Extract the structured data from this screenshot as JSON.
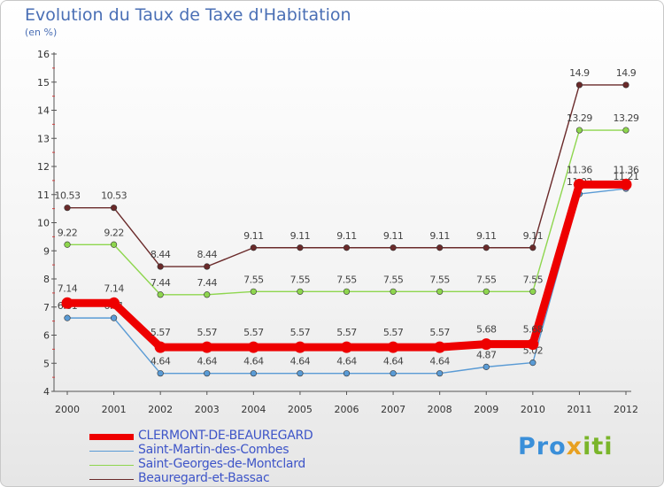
{
  "chart_data": {
    "type": "line",
    "title": "Evolution du Taux de Taxe d'Habitation",
    "unit_label": "(en %)",
    "x": [
      "2000",
      "2001",
      "2002",
      "2003",
      "2004",
      "2005",
      "2006",
      "2007",
      "2008",
      "2009",
      "2010",
      "2011",
      "2012"
    ],
    "ylim": [
      4,
      16
    ],
    "yticks": [
      "4",
      "5",
      "6",
      "7",
      "8",
      "9",
      "10",
      "11",
      "12",
      "13",
      "14",
      "15",
      "16"
    ],
    "series": [
      {
        "name": "Beauregard-et-Bassac",
        "color": "#6a2a2a",
        "values": [
          10.53,
          10.53,
          8.44,
          8.44,
          9.11,
          9.11,
          9.11,
          9.11,
          9.11,
          9.11,
          9.11,
          14.9,
          14.9
        ],
        "labels": [
          "10.53",
          "10.53",
          "8.44",
          "8.44",
          "9.11",
          "9.11",
          "9.11",
          "9.11",
          "9.11",
          "9.11",
          "9.11",
          "14.9",
          "14.9"
        ]
      },
      {
        "name": "Saint-Georges-de-Montclard",
        "color": "#8ed64e",
        "values": [
          9.22,
          9.22,
          7.44,
          7.44,
          7.55,
          7.55,
          7.55,
          7.55,
          7.55,
          7.55,
          7.55,
          13.29,
          13.29
        ],
        "labels": [
          "9.22",
          "9.22",
          "7.44",
          "7.44",
          "7.55",
          "7.55",
          "7.55",
          "7.55",
          "7.55",
          "7.55",
          "7.55",
          "13.29",
          "13.29"
        ]
      },
      {
        "name": "Saint-Martin-des-Combes",
        "color": "#5a9bd5",
        "values": [
          6.61,
          6.61,
          4.64,
          4.64,
          4.64,
          4.64,
          4.64,
          4.64,
          4.64,
          4.87,
          5.02,
          11.02,
          11.21
        ],
        "labels": [
          "6.61",
          "6.61",
          "4.64",
          "4.64",
          "4.64",
          "4.64",
          "4.64",
          "4.64",
          "4.64",
          "4.87",
          "5.02",
          "11.02",
          "11.21"
        ]
      },
      {
        "name": "CLERMONT-DE-BEAUREGARD",
        "color": "#ee0000",
        "values": [
          7.14,
          7.14,
          5.57,
          5.57,
          5.57,
          5.57,
          5.57,
          5.57,
          5.57,
          5.68,
          5.68,
          11.36,
          11.36
        ],
        "labels": [
          "7.14",
          "7.14",
          "5.57",
          "5.57",
          "5.57",
          "5.57",
          "5.57",
          "5.57",
          "5.57",
          "5.68",
          "5.68",
          "11.36",
          "11.36"
        ],
        "emphasis": true
      }
    ]
  },
  "legend": {
    "entries": [
      {
        "label": "CLERMONT-DE-BEAUREGARD",
        "color": "#ee0000",
        "thick": true
      },
      {
        "label": "Saint-Martin-des-Combes",
        "color": "#5a9bd5",
        "thick": false
      },
      {
        "label": "Saint-Georges-de-Montclard",
        "color": "#8ed64e",
        "thick": false
      },
      {
        "label": "Beauregard-et-Bassac",
        "color": "#6a2a2a",
        "thick": false
      }
    ]
  },
  "logo": {
    "part1": "Pro",
    "part2": "x",
    "part3": "iti"
  }
}
